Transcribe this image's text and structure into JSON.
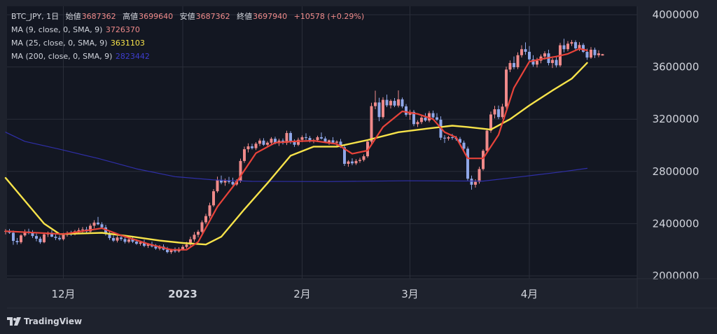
{
  "legend": {
    "symbol": "BTC_JPY",
    "interval": "1日",
    "open_label": "始値",
    "open_value": "3687362",
    "high_label": "高値",
    "high_value": "3699640",
    "low_label": "安値",
    "low_value": "3687362",
    "close_label": "終値",
    "close_value": "3697940",
    "change": "+10578 (+0.29%)",
    "ma9_name": "MA (9, close, 0, SMA, 9)",
    "ma9_value": "3726370",
    "ma25_name": "MA (25, close, 0, SMA, 9)",
    "ma25_value": "3631103",
    "ma200_name": "MA (200, close, 0, SMA, 9)",
    "ma200_value": "2823442"
  },
  "branding": {
    "text": "TradingView"
  },
  "colors": {
    "background": "#1e222d",
    "plot_background": "#131722",
    "grid": "#2a2e39",
    "up_candle": "#ef8a8a",
    "down_candle": "#8fa7e8",
    "ma9": "#e8433a",
    "ma25": "#f7e34a",
    "ma200": "#2f2fa8",
    "text": "#d1d4dc",
    "label_up": "#ef8a8a",
    "label_ma25": "#f7e34a",
    "label_ma200": "#3d3dcc"
  },
  "chart_data": {
    "type": "candlestick",
    "ylim": [
      2000000,
      4000000
    ],
    "y_ticks": [
      "2000000",
      "2400000",
      "2800000",
      "3200000",
      "3600000",
      "4000000"
    ],
    "x_ticks": [
      {
        "label": "12月",
        "day": 15
      },
      {
        "label": "2023",
        "day": 46
      },
      {
        "label": "2月",
        "day": 77
      },
      {
        "label": "3月",
        "day": 105
      },
      {
        "label": "4月",
        "day": 136
      }
    ],
    "ohlc": [
      [
        2340000,
        2358000,
        2318000,
        2344000
      ],
      [
        2344000,
        2360000,
        2322000,
        2330000
      ],
      [
        2330000,
        2347000,
        2238000,
        2268000
      ],
      [
        2268000,
        2290000,
        2240000,
        2258000
      ],
      [
        2258000,
        2320000,
        2245000,
        2310000
      ],
      [
        2310000,
        2355000,
        2300000,
        2340000
      ],
      [
        2340000,
        2361000,
        2318000,
        2332000
      ],
      [
        2332000,
        2350000,
        2290000,
        2305000
      ],
      [
        2305000,
        2324000,
        2265000,
        2285000
      ],
      [
        2285000,
        2300000,
        2245000,
        2258000
      ],
      [
        2258000,
        2330000,
        2250000,
        2318000
      ],
      [
        2318000,
        2340000,
        2298000,
        2330000
      ],
      [
        2330000,
        2350000,
        2296000,
        2300000
      ],
      [
        2300000,
        2318000,
        2274000,
        2291000
      ],
      [
        2291000,
        2308000,
        2270000,
        2281000
      ],
      [
        2281000,
        2329000,
        2271000,
        2315000
      ],
      [
        2315000,
        2342000,
        2300000,
        2326000
      ],
      [
        2326000,
        2345000,
        2306000,
        2319000
      ],
      [
        2319000,
        2352000,
        2310000,
        2341000
      ],
      [
        2341000,
        2367000,
        2324000,
        2350000
      ],
      [
        2350000,
        2374000,
        2331000,
        2356000
      ],
      [
        2356000,
        2376000,
        2326000,
        2340000
      ],
      [
        2340000,
        2400000,
        2330000,
        2384000
      ],
      [
        2384000,
        2426000,
        2364000,
        2408000
      ],
      [
        2408000,
        2452000,
        2388000,
        2395000
      ],
      [
        2395000,
        2411000,
        2360000,
        2371000
      ],
      [
        2371000,
        2391000,
        2308000,
        2325000
      ],
      [
        2325000,
        2345000,
        2275000,
        2290000
      ],
      [
        2290000,
        2310000,
        2260000,
        2270000
      ],
      [
        2270000,
        2306000,
        2256000,
        2294000
      ],
      [
        2294000,
        2315000,
        2268000,
        2282000
      ],
      [
        2282000,
        2298000,
        2248000,
        2261000
      ],
      [
        2261000,
        2292000,
        2250000,
        2279000
      ],
      [
        2279000,
        2300000,
        2252000,
        2262000
      ],
      [
        2262000,
        2280000,
        2238000,
        2246000
      ],
      [
        2246000,
        2270000,
        2232000,
        2256000
      ],
      [
        2256000,
        2276000,
        2220000,
        2230000
      ],
      [
        2230000,
        2252000,
        2214000,
        2242000
      ],
      [
        2242000,
        2262000,
        2218000,
        2226000
      ],
      [
        2226000,
        2244000,
        2200000,
        2210000
      ],
      [
        2210000,
        2236000,
        2196000,
        2224000
      ],
      [
        2224000,
        2241000,
        2195000,
        2201000
      ],
      [
        2201000,
        2222000,
        2172000,
        2182000
      ],
      [
        2182000,
        2208000,
        2168000,
        2196000
      ],
      [
        2196000,
        2218000,
        2176000,
        2188000
      ],
      [
        2188000,
        2220000,
        2178000,
        2205000
      ],
      [
        2205000,
        2236000,
        2194000,
        2222000
      ],
      [
        2222000,
        2260000,
        2210000,
        2240000
      ],
      [
        2240000,
        2300000,
        2226000,
        2280000
      ],
      [
        2280000,
        2336000,
        2262000,
        2315000
      ],
      [
        2315000,
        2352000,
        2295000,
        2338000
      ],
      [
        2338000,
        2425000,
        2328000,
        2410000
      ],
      [
        2410000,
        2476000,
        2396000,
        2458000
      ],
      [
        2458000,
        2560000,
        2440000,
        2540000
      ],
      [
        2540000,
        2665000,
        2528000,
        2648000
      ],
      [
        2648000,
        2760000,
        2636000,
        2735000
      ],
      [
        2735000,
        2768000,
        2702000,
        2715000
      ],
      [
        2715000,
        2745000,
        2690000,
        2732000
      ],
      [
        2732000,
        2758000,
        2706000,
        2720000
      ],
      [
        2720000,
        2752000,
        2694000,
        2700000
      ],
      [
        2700000,
        2740000,
        2690000,
        2726000
      ],
      [
        2726000,
        2898000,
        2714000,
        2880000
      ],
      [
        2880000,
        2990000,
        2865000,
        2970000
      ],
      [
        2970000,
        3015000,
        2945000,
        2992000
      ],
      [
        2992000,
        3012000,
        2968000,
        2978000
      ],
      [
        2978000,
        3024000,
        2964000,
        3012000
      ],
      [
        3012000,
        3052000,
        2994000,
        3036000
      ],
      [
        3036000,
        3054000,
        2996000,
        3004000
      ],
      [
        3004000,
        3032000,
        2986000,
        3020000
      ],
      [
        3020000,
        3062000,
        3004000,
        3050000
      ],
      [
        3050000,
        3066000,
        3008000,
        3016000
      ],
      [
        3016000,
        3050000,
        2995000,
        3036000
      ],
      [
        3036000,
        3052000,
        3006000,
        3018000
      ],
      [
        3018000,
        3112000,
        3002000,
        3094000
      ],
      [
        3094000,
        3108000,
        3010000,
        3024000
      ],
      [
        3024000,
        3046000,
        2988000,
        3004000
      ],
      [
        3004000,
        3058000,
        2994000,
        3042000
      ],
      [
        3042000,
        3076000,
        3024000,
        3062000
      ],
      [
        3062000,
        3092000,
        3040000,
        3056000
      ],
      [
        3056000,
        3072000,
        3022000,
        3030000
      ],
      [
        3030000,
        3050000,
        3016000,
        3040000
      ],
      [
        3040000,
        3074000,
        3024000,
        3062000
      ],
      [
        3062000,
        3098000,
        3044000,
        3052000
      ],
      [
        3052000,
        3068000,
        3016000,
        3022000
      ],
      [
        3022000,
        3044000,
        3004000,
        3038000
      ],
      [
        3038000,
        3062000,
        3012000,
        3020000
      ],
      [
        3020000,
        3038000,
        2996000,
        3028000
      ],
      [
        3028000,
        3048000,
        2980000,
        2985000
      ],
      [
        2985000,
        3000000,
        2842000,
        2858000
      ],
      [
        2858000,
        2886000,
        2836000,
        2876000
      ],
      [
        2876000,
        2900000,
        2848000,
        2862000
      ],
      [
        2862000,
        2894000,
        2850000,
        2880000
      ],
      [
        2880000,
        2904000,
        2866000,
        2888000
      ],
      [
        2888000,
        2930000,
        2876000,
        2916000
      ],
      [
        2916000,
        3042000,
        2904000,
        3028000
      ],
      [
        3028000,
        3326000,
        3012000,
        3300000
      ],
      [
        3300000,
        3418000,
        3276000,
        3328000
      ],
      [
        3328000,
        3364000,
        3184000,
        3216000
      ],
      [
        3216000,
        3368000,
        3204000,
        3348000
      ],
      [
        3348000,
        3388000,
        3292000,
        3306000
      ],
      [
        3306000,
        3352000,
        3282000,
        3340000
      ],
      [
        3340000,
        3362000,
        3292000,
        3304000
      ],
      [
        3304000,
        3420000,
        3290000,
        3352000
      ],
      [
        3352000,
        3366000,
        3284000,
        3298000
      ],
      [
        3298000,
        3316000,
        3220000,
        3234000
      ],
      [
        3234000,
        3272000,
        3196000,
        3256000
      ],
      [
        3256000,
        3270000,
        3146000,
        3162000
      ],
      [
        3162000,
        3192000,
        3140000,
        3178000
      ],
      [
        3178000,
        3230000,
        3162000,
        3212000
      ],
      [
        3212000,
        3246000,
        3180000,
        3190000
      ],
      [
        3190000,
        3262000,
        3176000,
        3246000
      ],
      [
        3246000,
        3266000,
        3198000,
        3214000
      ],
      [
        3214000,
        3246000,
        3186000,
        3196000
      ],
      [
        3196000,
        3222000,
        3040000,
        3058000
      ],
      [
        3058000,
        3078000,
        3018000,
        3052000
      ],
      [
        3052000,
        3072000,
        3036000,
        3062000
      ],
      [
        3062000,
        3088000,
        3042000,
        3056000
      ],
      [
        3056000,
        3072000,
        3034000,
        3048000
      ],
      [
        3048000,
        3064000,
        3010000,
        3020000
      ],
      [
        3020000,
        3036000,
        2962000,
        2974000
      ],
      [
        2974000,
        2990000,
        2730000,
        2744000
      ],
      [
        2744000,
        2768000,
        2660000,
        2698000
      ],
      [
        2698000,
        2740000,
        2676000,
        2720000
      ],
      [
        2720000,
        2836000,
        2706000,
        2818000
      ],
      [
        2818000,
        2970000,
        2806000,
        2958000
      ],
      [
        2958000,
        3130000,
        2944000,
        3112000
      ],
      [
        3112000,
        3258000,
        3096000,
        3236000
      ],
      [
        3236000,
        3302000,
        3206000,
        3276000
      ],
      [
        3276000,
        3304000,
        3200000,
        3216000
      ],
      [
        3216000,
        3318000,
        3204000,
        3296000
      ],
      [
        3296000,
        3602000,
        3282000,
        3580000
      ],
      [
        3580000,
        3650000,
        3560000,
        3630000
      ],
      [
        3630000,
        3680000,
        3582000,
        3598000
      ],
      [
        3598000,
        3712000,
        3584000,
        3690000
      ],
      [
        3690000,
        3766000,
        3672000,
        3736000
      ],
      [
        3736000,
        3788000,
        3694000,
        3716000
      ],
      [
        3716000,
        3760000,
        3640000,
        3658000
      ],
      [
        3658000,
        3690000,
        3602000,
        3618000
      ],
      [
        3618000,
        3670000,
        3596000,
        3648000
      ],
      [
        3648000,
        3696000,
        3628000,
        3680000
      ],
      [
        3680000,
        3720000,
        3656000,
        3704000
      ],
      [
        3704000,
        3732000,
        3612000,
        3630000
      ],
      [
        3630000,
        3668000,
        3592000,
        3654000
      ],
      [
        3654000,
        3682000,
        3596000,
        3612000
      ],
      [
        3612000,
        3784000,
        3600000,
        3766000
      ],
      [
        3766000,
        3816000,
        3712000,
        3736000
      ],
      [
        3736000,
        3798000,
        3720000,
        3778000
      ],
      [
        3778000,
        3806000,
        3760000,
        3790000
      ],
      [
        3790000,
        3804000,
        3724000,
        3742000
      ],
      [
        3742000,
        3790000,
        3722000,
        3768000
      ],
      [
        3768000,
        3782000,
        3708000,
        3716000
      ],
      [
        3716000,
        3740000,
        3654000,
        3672000
      ],
      [
        3672000,
        3752000,
        3662000,
        3732000
      ],
      [
        3732000,
        3748000,
        3668000,
        3690000
      ],
      [
        3690000,
        3728000,
        3674000,
        3704000
      ],
      [
        3687362,
        3699640,
        3687362,
        3697940
      ]
    ],
    "ma9": [
      [
        0,
        2342000
      ],
      [
        15,
        2320000
      ],
      [
        25,
        2365000
      ],
      [
        30,
        2310000
      ],
      [
        37,
        2245000
      ],
      [
        43,
        2200000
      ],
      [
        47,
        2200000
      ],
      [
        50,
        2260000
      ],
      [
        55,
        2530000
      ],
      [
        60,
        2720000
      ],
      [
        65,
        2940000
      ],
      [
        70,
        3020000
      ],
      [
        75,
        3030000
      ],
      [
        80,
        3035000
      ],
      [
        86,
        3010000
      ],
      [
        90,
        2935000
      ],
      [
        94,
        2960000
      ],
      [
        98,
        3140000
      ],
      [
        103,
        3260000
      ],
      [
        107,
        3240000
      ],
      [
        111,
        3200000
      ],
      [
        114,
        3100000
      ],
      [
        117,
        3060000
      ],
      [
        120,
        2900000
      ],
      [
        124,
        2900000
      ],
      [
        128,
        3080000
      ],
      [
        132,
        3440000
      ],
      [
        136,
        3640000
      ],
      [
        139,
        3660000
      ],
      [
        143,
        3680000
      ],
      [
        146,
        3700000
      ],
      [
        149,
        3740000
      ],
      [
        151,
        3726370
      ]
    ],
    "ma25": [
      [
        0,
        2750000
      ],
      [
        10,
        2400000
      ],
      [
        14,
        2320000
      ],
      [
        25,
        2330000
      ],
      [
        33,
        2300000
      ],
      [
        40,
        2270000
      ],
      [
        46,
        2252000
      ],
      [
        52,
        2240000
      ],
      [
        56,
        2300000
      ],
      [
        62,
        2510000
      ],
      [
        68,
        2710000
      ],
      [
        74,
        2920000
      ],
      [
        80,
        2990000
      ],
      [
        86,
        2990000
      ],
      [
        94,
        3040000
      ],
      [
        102,
        3100000
      ],
      [
        110,
        3130000
      ],
      [
        116,
        3150000
      ],
      [
        120,
        3140000
      ],
      [
        126,
        3120000
      ],
      [
        131,
        3200000
      ],
      [
        136,
        3305000
      ],
      [
        142,
        3420000
      ],
      [
        147,
        3510000
      ],
      [
        149,
        3570000
      ],
      [
        151,
        3631103
      ]
    ],
    "ma200": [
      [
        0,
        3100000
      ],
      [
        5,
        3030000
      ],
      [
        14,
        2970000
      ],
      [
        24,
        2900000
      ],
      [
        34,
        2820000
      ],
      [
        44,
        2760000
      ],
      [
        54,
        2735000
      ],
      [
        64,
        2724000
      ],
      [
        84,
        2722000
      ],
      [
        104,
        2728000
      ],
      [
        124,
        2726000
      ],
      [
        134,
        2760000
      ],
      [
        144,
        2795000
      ],
      [
        151,
        2823442
      ]
    ]
  }
}
